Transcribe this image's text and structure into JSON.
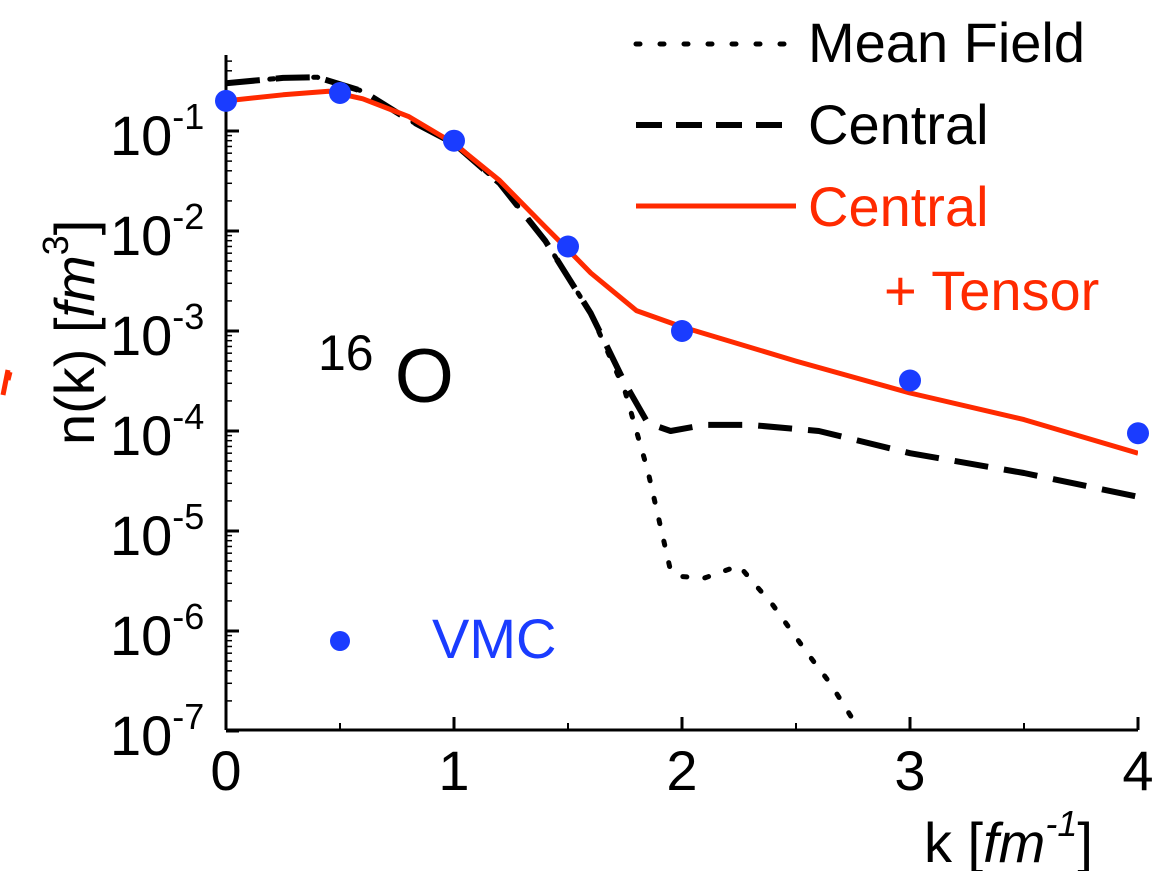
{
  "chart_data": {
    "type": "line",
    "xlabel_main": "k [",
    "xlabel_unit": "fm",
    "xlabel_exp": "-1",
    "xlabel_close": "]",
    "ylabel_main": "n(k) [",
    "ylabel_unit": "fm",
    "ylabel_exp": "3",
    "ylabel_close": "]",
    "xlim": [
      0,
      4
    ],
    "ylim_log10": [
      -7,
      0.3
    ],
    "y_scale": "log",
    "x_ticks": [
      {
        "value": 0,
        "label": "0"
      },
      {
        "value": 1,
        "label": "1"
      },
      {
        "value": 2,
        "label": "2"
      },
      {
        "value": 3,
        "label": "3"
      },
      {
        "value": 4,
        "label": "4"
      }
    ],
    "y_ticks": [
      {
        "exp": -1,
        "base": "10",
        "sup": "-1"
      },
      {
        "exp": -2,
        "base": "10",
        "sup": "-2"
      },
      {
        "exp": -3,
        "base": "10",
        "sup": "-3"
      },
      {
        "exp": -4,
        "base": "10",
        "sup": "-4"
      },
      {
        "exp": -5,
        "base": "10",
        "sup": "-5"
      },
      {
        "exp": -6,
        "base": "10",
        "sup": "-6"
      },
      {
        "exp": -7,
        "base": "10",
        "sup": "-7"
      }
    ],
    "annotation": {
      "nucleus_mass": "16",
      "nucleus_symbol": "O"
    },
    "series": [
      {
        "name": "Mean Field",
        "style": "dotted",
        "color": "#000000",
        "points": [
          [
            0,
            0.3
          ],
          [
            0.25,
            0.34
          ],
          [
            0.4,
            0.345
          ],
          [
            0.6,
            0.25
          ],
          [
            0.8,
            0.13
          ],
          [
            1.0,
            0.075
          ],
          [
            1.2,
            0.03
          ],
          [
            1.4,
            0.008
          ],
          [
            1.6,
            0.0015
          ],
          [
            1.75,
            0.00025
          ],
          [
            1.85,
            4e-05
          ],
          [
            1.95,
            4e-06
          ],
          [
            2.0,
            3.5e-06
          ],
          [
            2.1,
            3.4e-06
          ],
          [
            2.25,
            4.5e-06
          ],
          [
            2.4,
            1.8e-06
          ],
          [
            2.55,
            6e-07
          ],
          [
            2.65,
            3e-07
          ],
          [
            2.75,
            1.3e-07
          ]
        ]
      },
      {
        "name": "Central",
        "style": "dashed",
        "color": "#000000",
        "points": [
          [
            0,
            0.3
          ],
          [
            0.25,
            0.34
          ],
          [
            0.4,
            0.345
          ],
          [
            0.6,
            0.25
          ],
          [
            0.8,
            0.13
          ],
          [
            1.0,
            0.075
          ],
          [
            1.2,
            0.03
          ],
          [
            1.4,
            0.008
          ],
          [
            1.6,
            0.0015
          ],
          [
            1.75,
            0.0003
          ],
          [
            1.85,
            0.00012
          ],
          [
            1.95,
            0.0001
          ],
          [
            2.1,
            0.000115
          ],
          [
            2.3,
            0.000115
          ],
          [
            2.6,
            0.0001
          ],
          [
            3.0,
            6e-05
          ],
          [
            3.5,
            3.8e-05
          ],
          [
            4.0,
            2.2e-05
          ]
        ]
      },
      {
        "name": "Central + Tensor",
        "legend_line1": "Central",
        "legend_line2": "+ Tensor",
        "style": "solid",
        "color": "#ff2a00",
        "points": [
          [
            0,
            0.2
          ],
          [
            0.25,
            0.23
          ],
          [
            0.45,
            0.25
          ],
          [
            0.6,
            0.21
          ],
          [
            0.8,
            0.14
          ],
          [
            1.0,
            0.075
          ],
          [
            1.2,
            0.032
          ],
          [
            1.4,
            0.011
          ],
          [
            1.5,
            0.0065
          ],
          [
            1.6,
            0.0038
          ],
          [
            1.8,
            0.0016
          ],
          [
            2.0,
            0.0011
          ],
          [
            2.5,
            0.0005
          ],
          [
            3.0,
            0.00024
          ],
          [
            3.5,
            0.00013
          ],
          [
            4.0,
            6e-05
          ]
        ]
      }
    ],
    "markers": {
      "name": "VMC",
      "color": "#1a3cff",
      "points": [
        [
          0,
          0.2
        ],
        [
          0.5,
          0.24
        ],
        [
          1.0,
          0.08
        ],
        [
          1.5,
          0.007
        ],
        [
          2.0,
          0.001
        ],
        [
          3.0,
          0.00032
        ],
        [
          4.0,
          9.5e-05
        ]
      ]
    },
    "vmc_legend_marker": {
      "x": 0.5,
      "y_log10": -6.1
    }
  }
}
